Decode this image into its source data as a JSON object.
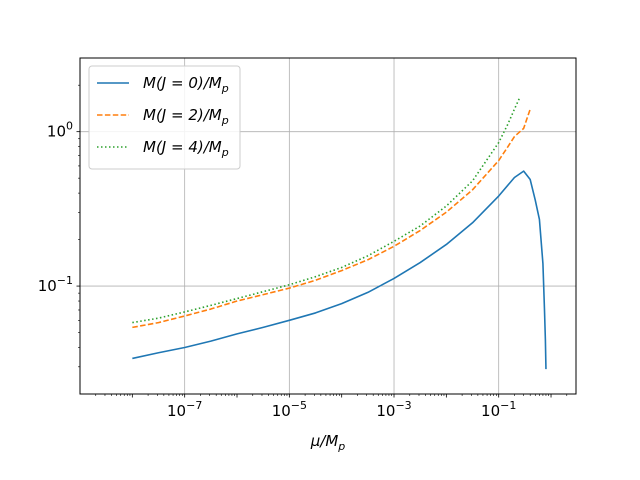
{
  "chart_data": {
    "type": "line",
    "title": "",
    "xlabel": "μ/M_p",
    "ylabel": "",
    "xscale": "log",
    "yscale": "log",
    "xlim": [
      1e-09,
      3.0
    ],
    "ylim": [
      0.02,
      3.0
    ],
    "grid": true,
    "legend_position": "top-left",
    "x_ticks": [
      {
        "value": 1e-07,
        "base": "10",
        "exp": "−7"
      },
      {
        "value": 1e-05,
        "base": "10",
        "exp": "−5"
      },
      {
        "value": 0.001,
        "base": "10",
        "exp": "−3"
      },
      {
        "value": 0.1,
        "base": "10",
        "exp": "−1"
      }
    ],
    "y_ticks": [
      {
        "value": 1.0,
        "base": "10",
        "exp": "0"
      },
      {
        "value": 0.1,
        "base": "10",
        "exp": "−1"
      }
    ],
    "series": [
      {
        "name": "M(J = 0)/M_p",
        "color": "#1f77b4",
        "style": "solid",
        "x": [
          1e-08,
          3.16e-08,
          1e-07,
          3.16e-07,
          1e-06,
          3.16e-06,
          1e-05,
          3.16e-05,
          0.0001,
          0.000316,
          0.001,
          0.00316,
          0.01,
          0.0316,
          0.1,
          0.2,
          0.3,
          0.4,
          0.5,
          0.6,
          0.7,
          0.75,
          0.78,
          0.8
        ],
        "y": [
          0.034,
          0.037,
          0.04,
          0.044,
          0.049,
          0.054,
          0.06,
          0.067,
          0.077,
          0.091,
          0.112,
          0.142,
          0.186,
          0.257,
          0.383,
          0.505,
          0.555,
          0.49,
          0.36,
          0.27,
          0.14,
          0.07,
          0.045,
          0.029
        ]
      },
      {
        "name": "M(J = 2)/M_p",
        "color": "#ff7f0e",
        "style": "dashed",
        "x": [
          1e-08,
          3.16e-08,
          1e-07,
          3.16e-07,
          1e-06,
          3.16e-06,
          1e-05,
          3.16e-05,
          0.0001,
          0.000316,
          0.001,
          0.00316,
          0.01,
          0.0316,
          0.1,
          0.15,
          0.2,
          0.3,
          0.4
        ],
        "y": [
          0.054,
          0.058,
          0.064,
          0.071,
          0.08,
          0.088,
          0.097,
          0.109,
          0.126,
          0.148,
          0.181,
          0.229,
          0.301,
          0.42,
          0.65,
          0.8,
          0.93,
          1.05,
          1.4
        ]
      },
      {
        "name": "M(J = 4)/M_p",
        "color": "#2ca02c",
        "style": "dotted",
        "x": [
          1e-08,
          3.16e-08,
          1e-07,
          3.16e-07,
          1e-06,
          3.16e-06,
          1e-05,
          3.16e-05,
          0.0001,
          0.000316,
          0.001,
          0.00316,
          0.01,
          0.0316,
          0.1,
          0.15,
          0.2,
          0.25
        ],
        "y": [
          0.058,
          0.062,
          0.068,
          0.075,
          0.083,
          0.092,
          0.102,
          0.115,
          0.132,
          0.157,
          0.195,
          0.245,
          0.33,
          0.48,
          0.85,
          1.12,
          1.4,
          1.65
        ]
      }
    ]
  }
}
